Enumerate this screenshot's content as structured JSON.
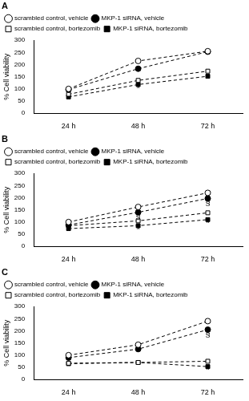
{
  "chart_data": [
    {
      "type": "line",
      "title": "A",
      "y_label": "% Cell viability",
      "categories": [
        "24 h",
        "48 h",
        "72 h"
      ],
      "series": [
        {
          "name": "scrambled control, vehicle",
          "color": "#000000",
          "marker": "open-circle",
          "line_style": "dashed",
          "values": [
            100,
            215,
            255
          ]
        },
        {
          "name": "MKP-1 siRNA, vehicle",
          "color": "#000000",
          "marker": "circle",
          "line_style": "dashed",
          "values": [
            97,
            183,
            253
          ]
        },
        {
          "name": "scrambled control, bortezomib",
          "color": "#000000",
          "marker": "open-square",
          "line_style": "dashed",
          "values": [
            78,
            135,
            173
          ]
        },
        {
          "name": "MKP-1 siRNA, bortezomib",
          "color": "#000000",
          "marker": "square",
          "line_style": "dashed",
          "values": [
            67,
            118,
            152
          ]
        }
      ],
      "annotations": [
        {
          "text": "*",
          "x": "48 h",
          "y": 100
        }
      ],
      "ylim": [
        0,
        300
      ],
      "yticks": [
        0,
        50,
        100,
        150,
        200,
        250,
        300
      ],
      "grid": false,
      "legend": "top"
    },
    {
      "type": "line",
      "title": "B",
      "y_label": "% Cell viability",
      "categories": [
        "24 h",
        "48 h",
        "72 h"
      ],
      "series": [
        {
          "name": "scrambled control, vehicle",
          "color": "#000000",
          "marker": "open-circle",
          "line_style": "dashed",
          "values": [
            100,
            162,
            220
          ]
        },
        {
          "name": "MKP-1 siRNA, vehicle",
          "color": "#000000",
          "marker": "circle",
          "line_style": "dashed",
          "values": [
            88,
            140,
            197
          ]
        },
        {
          "name": "scrambled control, bortezomib",
          "color": "#000000",
          "marker": "open-square",
          "line_style": "dashed",
          "values": [
            85,
            105,
            138
          ]
        },
        {
          "name": "MKP-1 siRNA, bortezomib",
          "color": "#000000",
          "marker": "square",
          "line_style": "dashed",
          "values": [
            73,
            85,
            110
          ]
        }
      ],
      "annotations": [
        {
          "text": "§",
          "x": "48 h",
          "y": 122
        },
        {
          "text": "§",
          "x": "72 h",
          "y": 178
        },
        {
          "text": "*",
          "x": "48 h",
          "y": 66
        },
        {
          "text": "*",
          "x": "72 h",
          "y": 92
        }
      ],
      "ylim": [
        0,
        300
      ],
      "yticks": [
        0,
        50,
        100,
        150,
        200,
        250,
        300
      ],
      "grid": false,
      "legend": "top"
    },
    {
      "type": "line",
      "title": "C",
      "y_label": "% Cell viability",
      "categories": [
        "24 h",
        "48 h",
        "72 h"
      ],
      "series": [
        {
          "name": "scrambled control, vehicle",
          "color": "#000000",
          "marker": "open-circle",
          "line_style": "dashed",
          "values": [
            100,
            143,
            240
          ]
        },
        {
          "name": "MKP-1 siRNA, vehicle",
          "color": "#000000",
          "marker": "circle",
          "line_style": "dashed",
          "values": [
            90,
            125,
            205
          ]
        },
        {
          "name": "scrambled control, bortezomib",
          "color": "#000000",
          "marker": "open-square",
          "line_style": "dashed",
          "values": [
            67,
            70,
            75
          ]
        },
        {
          "name": "MKP-1 siRNA, bortezomib",
          "color": "#000000",
          "marker": "square",
          "line_style": "dashed",
          "values": [
            65,
            70,
            53
          ]
        }
      ],
      "annotations": [
        {
          "text": "§",
          "x": "72 h",
          "y": 186
        },
        {
          "text": "*",
          "x": "72 h",
          "y": 36
        }
      ],
      "ylim": [
        0,
        300
      ],
      "yticks": [
        0,
        50,
        100,
        150,
        200,
        250,
        300
      ],
      "grid": false,
      "legend": "top"
    }
  ]
}
